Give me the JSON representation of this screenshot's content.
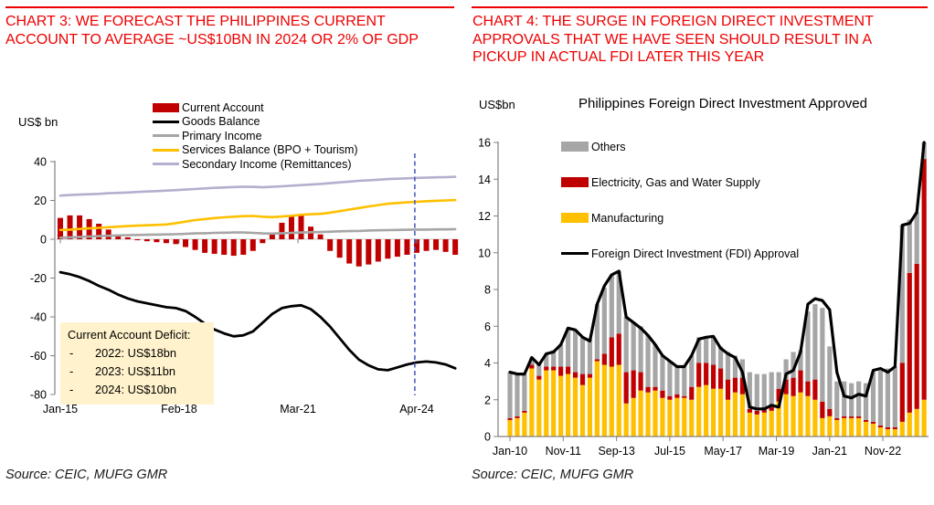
{
  "header": {
    "chart3_title": "CHART 3: WE FORECAST THE PHILIPPINES CURRENT ACCOUNT TO AVERAGE ~US$10BN IN 2024 OR 2% OF GDP",
    "chart4_title": "CHART 4: THE SURGE IN FOREIGN DIRECT INVESTMENT APPROVALS THAT WE HAVE SEEN SHOULD RESULT IN A PICKUP IN ACTUAL FDI LATER THIS YEAR"
  },
  "colors": {
    "accent_red": "#ee0000",
    "bar_red": "#c00000",
    "gold": "#ffc000",
    "gray": "#a6a6a6",
    "lavender": "#b4afce",
    "black": "#000000",
    "annotation_bg": "#fff2cc",
    "forecast_dash": "#4a5ec4",
    "axis_gray": "#808080"
  },
  "left_panel": {
    "y_axis_unit": "US$ bn",
    "source": "Source: CEIC, MUFG GMR",
    "annotation": {
      "title": "Current Account Deficit:",
      "bullets": [
        "2022: US$18bn",
        "2023: US$11bn",
        "2024: US$10bn"
      ]
    }
  },
  "right_panel": {
    "y_axis_unit": "US$bn",
    "chart_title": "Philippines Foreign Direct Investment Approved",
    "source": "Source: CEIC, MUFG GMR"
  },
  "chart_data": [
    {
      "id": "philippines-current-account",
      "type": "bar+line combo",
      "ylabel": "US$ bn",
      "ylim": [
        -80,
        40
      ],
      "y_ticks": [
        40,
        20,
        0,
        -20,
        -40,
        -60,
        -80
      ],
      "x_ticks": [
        {
          "label": "Jan-15",
          "pos": 0
        },
        {
          "label": "Feb-18",
          "pos": 12.33
        },
        {
          "label": "Mar-21",
          "pos": 24.67
        },
        {
          "label": "Apr-24",
          "pos": 37
        }
      ],
      "x_note": "quarterly observations, Jan-15 through mid-2025 (values past the dashed line are forecasts)",
      "legend": [
        {
          "label": "Current Account",
          "swatch": "bar",
          "color": "#c00000"
        },
        {
          "label": "Goods Balance",
          "swatch": "line",
          "color": "#000000"
        },
        {
          "label": "Primary Income",
          "swatch": "line",
          "color": "#a6a6a6"
        },
        {
          "label": "Services Balance (BPO + Tourism)",
          "swatch": "line",
          "color": "#ffc000"
        },
        {
          "label": "Secondary Income (Remittances)",
          "swatch": "line",
          "color": "#b4afce"
        }
      ],
      "bar_series": {
        "name": "Current Account",
        "color": "#c00000",
        "values": [
          11,
          12.3,
          12.3,
          10.4,
          8,
          5,
          2.5,
          1,
          -0.5,
          -1,
          -1.5,
          -2,
          -2.5,
          -4,
          -5.5,
          -7,
          -7.5,
          -8,
          -8.5,
          -8,
          -6,
          -2,
          2.5,
          8.5,
          12,
          12.5,
          6.5,
          2.5,
          -6,
          -9.5,
          -12.5,
          -14,
          -13,
          -11.5,
          -10,
          -9,
          -8,
          -7,
          -6,
          -5.5,
          -6.5,
          -8
        ]
      },
      "line_series": [
        {
          "name": "Goods Balance",
          "color": "#000000",
          "width": 2.8,
          "values": [
            -17,
            -18,
            -19.5,
            -21.5,
            -24,
            -26,
            -28.5,
            -30.5,
            -32,
            -33,
            -34,
            -35,
            -35.5,
            -37,
            -40,
            -43.5,
            -46.5,
            -48.5,
            -50,
            -49.5,
            -47.5,
            -43,
            -38.5,
            -35.5,
            -34.5,
            -34,
            -36,
            -40,
            -45,
            -51,
            -57,
            -62,
            -65,
            -67,
            -67.5,
            -66,
            -64.5,
            -63.5,
            -63,
            -63.5,
            -64.5,
            -66.5
          ]
        },
        {
          "name": "Primary Income",
          "color": "#a6a6a6",
          "width": 2.6,
          "values": [
            0.8,
            1,
            1.2,
            1.4,
            1.6,
            1.8,
            2,
            2.1,
            2.2,
            2.3,
            2.4,
            2.5,
            2.6,
            2.8,
            3,
            3.1,
            3.3,
            3.4,
            3.5,
            3.5,
            3.3,
            3,
            2.9,
            3.1,
            3.3,
            3.5,
            3.6,
            3.7,
            3.9,
            4.1,
            4.2,
            4.3,
            4.5,
            4.6,
            4.7,
            4.8,
            4.9,
            5,
            5,
            5.1,
            5.1,
            5.2
          ]
        },
        {
          "name": "Services Balance (BPO + Tourism)",
          "color": "#ffc000",
          "width": 2.6,
          "values": [
            4.8,
            5,
            5.3,
            5.6,
            5.9,
            6.2,
            6.5,
            6.8,
            7,
            7.2,
            7.4,
            7.6,
            8.3,
            9.1,
            9.9,
            10.4,
            10.9,
            11.3,
            11.6,
            11.9,
            12,
            11.6,
            11.4,
            11.7,
            12.1,
            12.6,
            12.9,
            13.1,
            13.7,
            14.5,
            15.3,
            16.1,
            16.9,
            17.6,
            18.3,
            18.7,
            19,
            19.3,
            19.6,
            19.8,
            20,
            20.2
          ]
        },
        {
          "name": "Secondary Income (Remittances)",
          "color": "#b4afce",
          "width": 2.6,
          "values": [
            22.5,
            22.8,
            23,
            23.2,
            23.4,
            23.7,
            23.9,
            24.1,
            24.4,
            24.6,
            24.8,
            25.1,
            25.3,
            25.6,
            25.9,
            26.2,
            26.5,
            26.7,
            26.9,
            27,
            27,
            26.8,
            27,
            27.3,
            27.6,
            27.9,
            28.2,
            28.5,
            28.9,
            29.3,
            29.7,
            30.1,
            30.4,
            30.7,
            31,
            31.2,
            31.4,
            31.6,
            31.7,
            31.9,
            32,
            32.2
          ]
        }
      ],
      "forecast_divider": {
        "pos": 36.8,
        "color": "#4a5ec4",
        "style": "dashed"
      }
    },
    {
      "id": "philippines-fdi-approved",
      "type": "stacked-bar+line",
      "title": "Philippines Foreign Direct Investment Approved",
      "ylabel": "US$bn",
      "ylim": [
        0,
        16
      ],
      "y_ticks": [
        16,
        14,
        12,
        10,
        8,
        6,
        4,
        2,
        0
      ],
      "x_ticks": [
        {
          "label": "Jan-10",
          "pos": 0
        },
        {
          "label": "Nov-11",
          "pos": 7.33
        },
        {
          "label": "Sep-13",
          "pos": 14.67
        },
        {
          "label": "Jul-15",
          "pos": 22
        },
        {
          "label": "May-17",
          "pos": 29.33
        },
        {
          "label": "Mar-19",
          "pos": 36.67
        },
        {
          "label": "Jan-21",
          "pos": 44
        },
        {
          "label": "Nov-22",
          "pos": 51.33
        }
      ],
      "x_note": "quarterly observations, Jan-10 through mid-2024",
      "legend": [
        {
          "label": "Others",
          "swatch": "bar",
          "color": "#a6a6a6"
        },
        {
          "label": "Electricity, Gas and Water Supply",
          "swatch": "bar",
          "color": "#c00000"
        },
        {
          "label": "Manufacturing",
          "swatch": "bar",
          "color": "#ffc000"
        },
        {
          "label": "Foreign Direct Investment (FDI) Approval",
          "swatch": "line",
          "color": "#000000"
        }
      ],
      "stack_series": [
        {
          "name": "Manufacturing",
          "color": "#ffc000",
          "values": [
            0.9,
            1,
            1.3,
            3.7,
            3.1,
            3.6,
            3.6,
            3.3,
            3.4,
            3.2,
            2.8,
            3.2,
            4.1,
            3.9,
            3.8,
            3.9,
            1.8,
            2.1,
            2.5,
            2.4,
            2.5,
            2.1,
            2,
            2.1,
            2.1,
            2,
            2.7,
            2.8,
            2.6,
            2.6,
            2,
            2.4,
            2.3,
            1.3,
            1.2,
            1.3,
            1.4,
            1.9,
            2.3,
            2.2,
            2.4,
            2.2,
            2,
            1,
            1.1,
            0.9,
            1,
            1,
            1,
            0.8,
            0.7,
            0.5,
            0.4,
            0.4,
            0.8,
            1.3,
            1.5,
            2
          ]
        },
        {
          "name": "Electricity, Gas and Water Supply",
          "color": "#c00000",
          "values": [
            0.1,
            0.1,
            0.1,
            0.2,
            0.2,
            0.2,
            0.2,
            0.5,
            0.4,
            0.3,
            0.6,
            0.2,
            0.1,
            0.6,
            1.6,
            1.7,
            1.7,
            1.5,
            1,
            0.3,
            0.2,
            0.4,
            0.2,
            0.2,
            0.1,
            0.7,
            1.3,
            1.2,
            1.3,
            1.1,
            1.1,
            0.8,
            0.9,
            0.2,
            0.2,
            0.3,
            0.2,
            0.7,
            0.8,
            1,
            1.2,
            0.8,
            1.1,
            0.9,
            0.4,
            0.1,
            0.1,
            0.1,
            0.1,
            0.1,
            0.1,
            0.1,
            0.1,
            0.1,
            3.2,
            7.6,
            7.9,
            13.1
          ]
        },
        {
          "name": "Others",
          "color": "#a6a6a6",
          "values": [
            2.5,
            2.3,
            2,
            0.4,
            0.7,
            0.7,
            0.9,
            1.2,
            2.1,
            2.3,
            2,
            1.9,
            3,
            3.6,
            3.4,
            3.4,
            3,
            2.6,
            2.5,
            2.8,
            2.3,
            1.9,
            1.9,
            1.5,
            1.6,
            1.7,
            1.4,
            1.4,
            1.5,
            1.2,
            1.5,
            1.2,
            1,
            2,
            2,
            1.8,
            1.9,
            0.9,
            1.1,
            1.4,
            1.1,
            3.8,
            4.1,
            5.1,
            3.4,
            2,
            1.9,
            1.8,
            1.9,
            2,
            2.7,
            3,
            3.2,
            3.3,
            7.5,
            2.9,
            2.8,
            0.9
          ]
        }
      ],
      "line_series": {
        "name": "Foreign Direct Investment (FDI) Approval",
        "color": "#000000",
        "width": 3.2,
        "values": [
          3.5,
          3.4,
          3.4,
          4.3,
          3.9,
          4.5,
          4.6,
          5,
          5.9,
          5.8,
          5.4,
          5.2,
          7.2,
          8.2,
          8.8,
          9,
          6.5,
          6.2,
          5.9,
          5.5,
          5,
          4.4,
          4.1,
          3.8,
          3.8,
          4.4,
          5.3,
          5.4,
          5.45,
          4.8,
          4.5,
          4.3,
          3.5,
          1.6,
          1.5,
          1.5,
          1.7,
          1.6,
          3.4,
          3.6,
          4.6,
          7.2,
          7.5,
          7.4,
          6.9,
          3.5,
          2.2,
          2.1,
          2.3,
          2.2,
          3.6,
          3.7,
          3.5,
          3.8,
          11.5,
          11.6,
          12.2,
          16
        ]
      }
    }
  ]
}
